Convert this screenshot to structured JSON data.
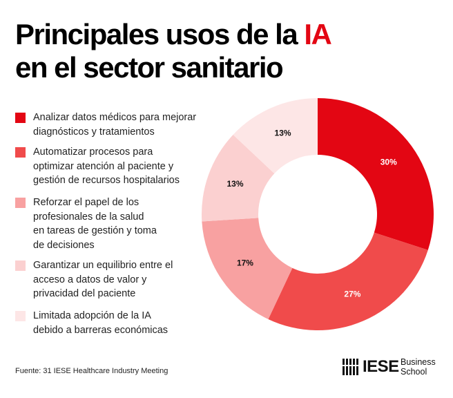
{
  "title": {
    "line1_prefix": "Principales usos de la ",
    "highlight": "IA",
    "line2": "en el sector sanitario"
  },
  "colors": {
    "accent": "#e30613"
  },
  "chart_data": {
    "type": "pie",
    "donut": true,
    "title": "Principales usos de la IA en el sector sanitario",
    "categories": [
      "Analizar datos médicos para mejorar diagnósticos y tratamientos",
      "Automatizar procesos para optimizar atención al paciente y gestión de recursos hospitalarios",
      "Reforzar el papel de los profesionales de la salud en tareas de gestión y toma de decisiones",
      "Garantizar un equilibrio entre el acceso a datos de valor y privacidad del paciente",
      "Limitada adopción de la IA debido a barreras económicas"
    ],
    "values": [
      30,
      27,
      17,
      13,
      13
    ],
    "labels": [
      "30%",
      "27%",
      "17%",
      "13%",
      "13%"
    ],
    "colors": [
      "#e30613",
      "#f04b4b",
      "#f8a1a1",
      "#fbd0d0",
      "#fde6e6"
    ],
    "label_colors": [
      "#ffffff",
      "#ffffff",
      "#111111",
      "#111111",
      "#111111"
    ],
    "legend": "left"
  },
  "legend": [
    {
      "lines": [
        "Analizar datos médicos para mejorar",
        "diagnósticos y tratamientos"
      ]
    },
    {
      "lines": [
        "Automatizar procesos para",
        "optimizar atención al paciente y",
        "gestión de recursos hospitalarios"
      ]
    },
    {
      "lines": [
        "Reforzar el papel de los",
        "profesionales de la salud",
        "en tareas de gestión y toma",
        "de decisiones"
      ]
    },
    {
      "lines": [
        "Garantizar un equilibrio entre el",
        "acceso a datos de valor y",
        "privacidad del paciente"
      ]
    },
    {
      "lines": [
        "Limitada adopción de la IA",
        "debido a barreras económicas"
      ]
    }
  ],
  "source": "Fuente: 31 IESE Healthcare Industry Meeting",
  "logo": {
    "brand": "IESE",
    "line1": "Business",
    "line2": "School"
  }
}
